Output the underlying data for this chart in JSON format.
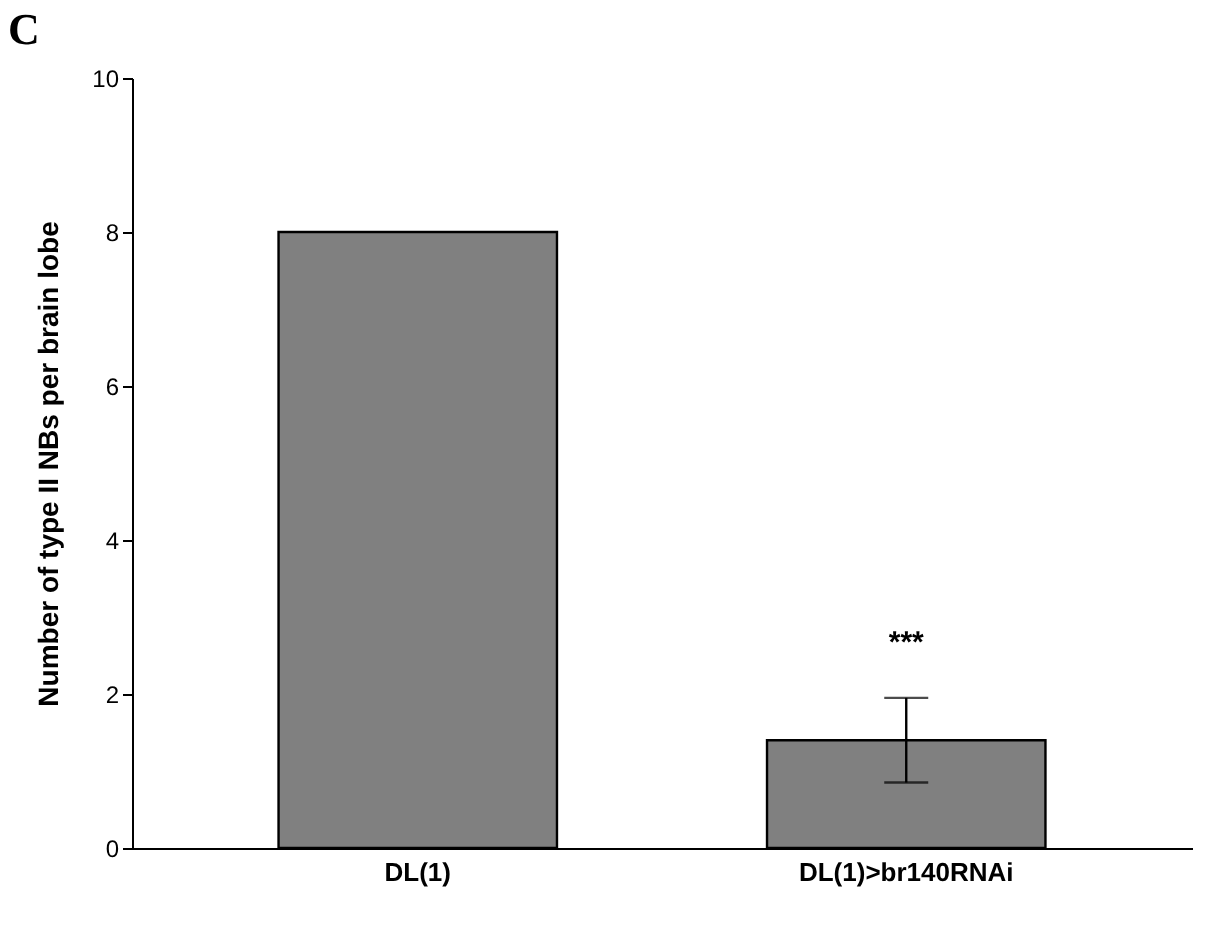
{
  "chart_data": {
    "type": "bar",
    "title": "C",
    "ylabel": "Number of type II NBs per brain lobe",
    "categories": [
      "DL(1)",
      "DL(1)>br140RNAi"
    ],
    "values": [
      8,
      1.4
    ],
    "color": "#808080",
    "errors": [
      null,
      0.55
    ],
    "ylim": [
      0,
      10
    ],
    "yticks": [
      0,
      2,
      4,
      6,
      8,
      10
    ],
    "grid": false,
    "annotations": [
      "***"
    ]
  }
}
